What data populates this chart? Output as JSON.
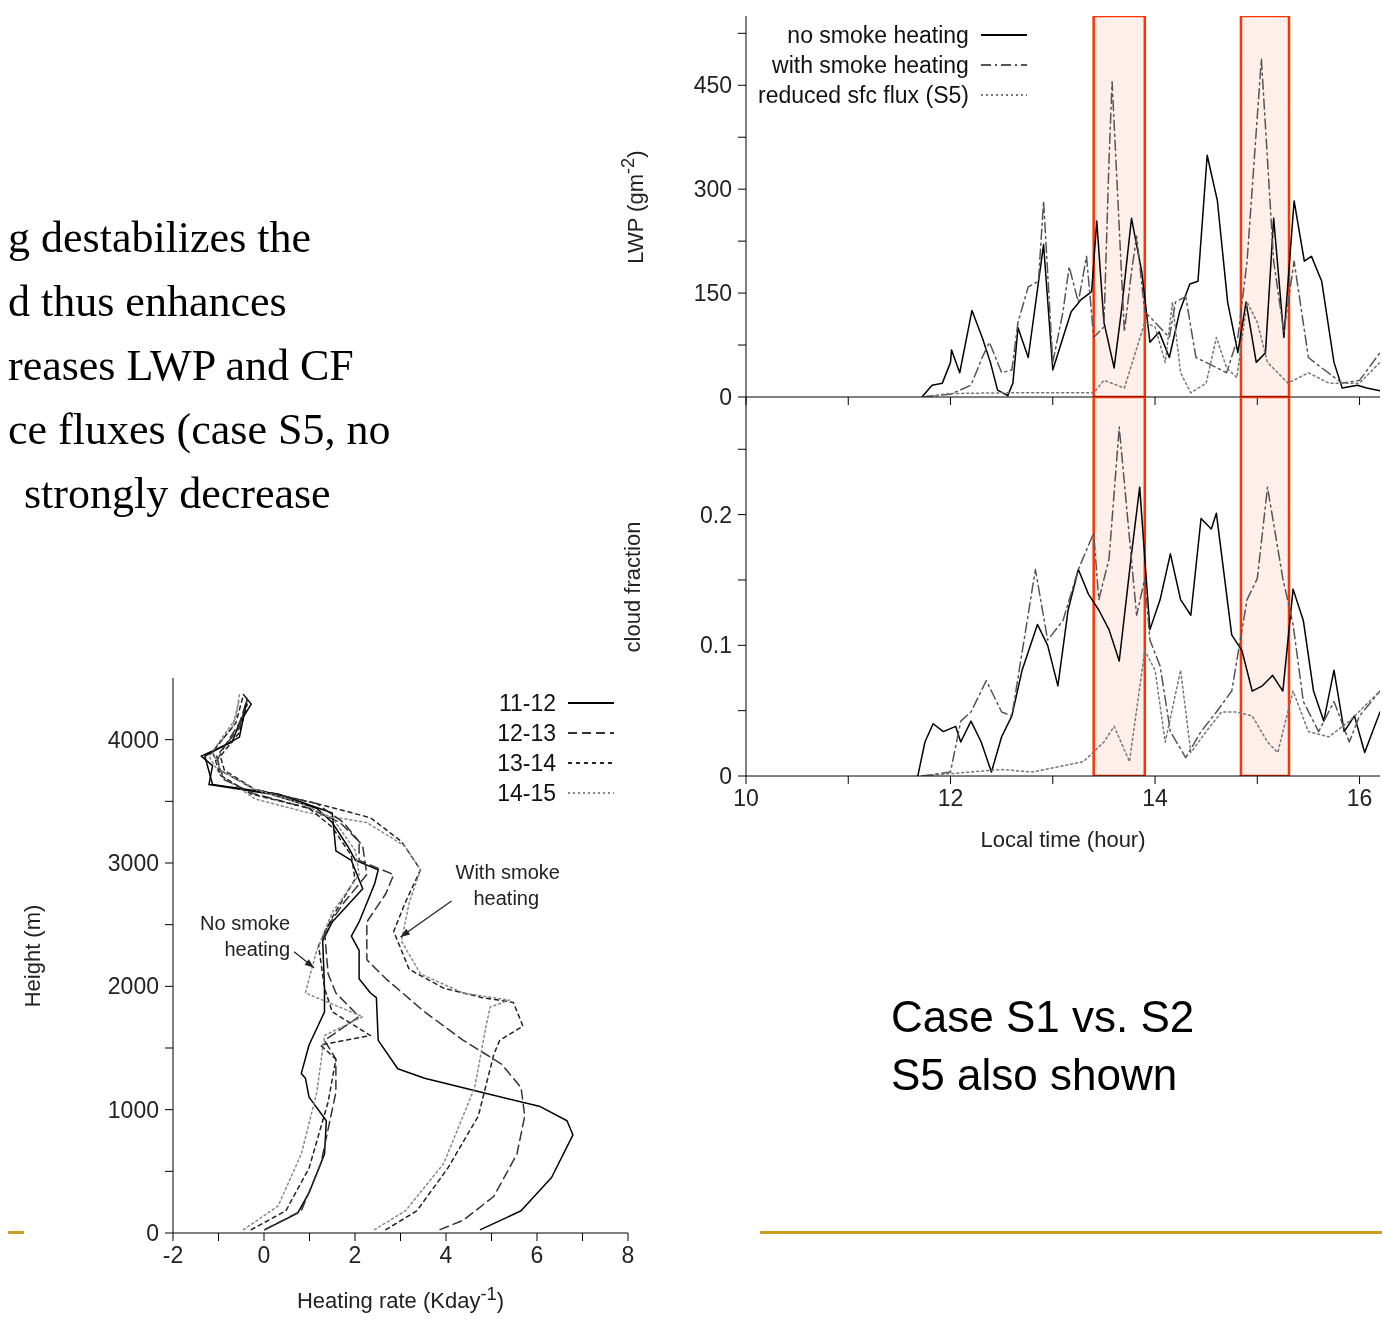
{
  "chart_data": [
    {
      "type": "other",
      "annotations": [
        "g destabilizes the",
        "d thus enhances",
        "reases LWP and CF",
        "ce fluxes (case S5, no",
        "strongly decrease"
      ]
    },
    {
      "type": "line",
      "ylabel": "LWP (gm$^{-2}$)",
      "xlim": [
        10,
        16.2
      ],
      "ylim": [
        0,
        550
      ],
      "xticks": [
        10,
        {
          "value": 11,
          "label": null
        },
        12,
        {
          "value": 13,
          "label": null
        },
        14,
        {
          "value": 15,
          "label": null
        },
        16
      ],
      "yticks": [
        0,
        {
          "value": 75,
          "label": null
        },
        150,
        {
          "value": 225,
          "label": null
        },
        300,
        {
          "value": 375,
          "label": null
        },
        450,
        {
          "value": 525,
          "label": null
        }
      ],
      "tick_labels": "y",
      "legend": "top left",
      "bands": [
        {
          "axis": "x",
          "from": 13.4,
          "to": 13.9,
          "color": "#ff3300"
        },
        {
          "axis": "x",
          "from": 14.84,
          "to": 15.31,
          "color": "#ff3300"
        }
      ],
      "series": [
        {
          "name": "no smoke heating",
          "color": "#000000",
          "line_style": "solid",
          "x": [
            11.72,
            11.82,
            11.92,
            12.0,
            12.01,
            12.09,
            12.21,
            12.31,
            12.39,
            12.46,
            12.56,
            12.61,
            12.66,
            12.76,
            12.91,
            13.0,
            13.1,
            13.18,
            13.28,
            13.38,
            13.43,
            13.5,
            13.6,
            13.67,
            13.77,
            13.87,
            13.95,
            14.04,
            14.14,
            14.24,
            14.34,
            14.42,
            14.51,
            14.61,
            14.71,
            14.81,
            14.89,
            14.99,
            15.08,
            15.16,
            15.26,
            15.36,
            15.46,
            15.53,
            15.63,
            15.75,
            15.83,
            15.98,
            16.07,
            16.2
          ],
          "values": [
            0,
            17,
            20,
            50,
            68,
            35,
            125,
            86,
            50,
            10,
            2,
            20,
            100,
            57,
            220,
            39,
            86,
            123,
            141,
            152,
            254,
            108,
            42,
            123,
            258,
            181,
            79,
            94,
            57,
            123,
            163,
            167,
            349,
            283,
            137,
            64,
            137,
            50,
            64,
            258,
            86,
            283,
            196,
            203,
            167,
            50,
            13,
            17,
            13,
            9
          ]
        },
        {
          "name": "with smoke heating",
          "color": "#555555",
          "line_style": "dashdot",
          "x": [
            11.72,
            12.0,
            12.2,
            12.31,
            12.38,
            12.5,
            12.6,
            12.66,
            12.76,
            12.86,
            12.91,
            13.0,
            13.1,
            13.16,
            13.25,
            13.33,
            13.4,
            13.5,
            13.55,
            13.58,
            13.63,
            13.7,
            13.77,
            13.82,
            13.9,
            14.0,
            14.14,
            14.2,
            14.3,
            14.4,
            14.5,
            14.7,
            14.81,
            14.9,
            14.97,
            15.04,
            15.1,
            15.16,
            15.26,
            15.36,
            15.5,
            15.63,
            15.83,
            16.0,
            16.2
          ],
          "values": [
            0,
            4,
            17,
            57,
            79,
            35,
            39,
            108,
            159,
            167,
            283,
            50,
            123,
            188,
            137,
            203,
            86,
            101,
            342,
            455,
            305,
            94,
            181,
            232,
            123,
            108,
            86,
            137,
            145,
            57,
            50,
            35,
            86,
            196,
            342,
            488,
            342,
            196,
            94,
            196,
            57,
            42,
            20,
            24,
            64
          ]
        },
        {
          "name": "reduced sfc flux (S5)",
          "color": "#777777",
          "line_style": "dotted",
          "x": [
            11.72,
            12.0,
            12.5,
            13.0,
            13.4,
            13.5,
            13.7,
            13.9,
            14.0,
            14.1,
            14.17,
            14.25,
            14.35,
            14.5,
            14.6,
            14.7,
            14.8,
            14.9,
            15.0,
            15.1,
            15.3,
            15.5,
            15.7,
            16.0,
            16.2
          ],
          "values": [
            0,
            5,
            6,
            6,
            6,
            24,
            13,
            108,
            101,
            50,
            137,
            35,
            6,
            20,
            86,
            42,
            28,
            137,
            108,
            50,
            20,
            35,
            20,
            20,
            50
          ]
        }
      ]
    },
    {
      "type": "line",
      "xlabel": "Local time (hour)",
      "ylabel": "cloud fraction",
      "xlim": [
        10,
        16.2
      ],
      "ylim": [
        0,
        0.29
      ],
      "xticks": [
        10,
        {
          "value": 11,
          "label": null
        },
        12,
        {
          "value": 13,
          "label": null
        },
        14,
        {
          "value": 15,
          "label": null
        },
        16
      ],
      "yticks": [
        0,
        {
          "value": 0.05,
          "label": null
        },
        0.1,
        {
          "value": 0.15,
          "label": null
        },
        0.2,
        {
          "value": 0.25,
          "label": null
        }
      ],
      "bands": [
        {
          "axis": "x",
          "from": 13.4,
          "to": 13.9,
          "color": "#ff3300"
        },
        {
          "axis": "x",
          "from": 14.84,
          "to": 15.31,
          "color": "#ff3300"
        }
      ],
      "series": [
        {
          "color": "#000000",
          "line_style": "solid",
          "x": [
            11.68,
            11.75,
            11.83,
            11.93,
            12.05,
            12.1,
            12.2,
            12.3,
            12.4,
            12.5,
            12.6,
            12.7,
            12.85,
            12.95,
            13.05,
            13.15,
            13.25,
            13.35,
            13.45,
            13.55,
            13.65,
            13.77,
            13.85,
            13.95,
            14.05,
            14.15,
            14.25,
            14.35,
            14.45,
            14.55,
            14.6,
            14.75,
            14.85,
            14.95,
            15.05,
            15.15,
            15.25,
            15.35,
            15.45,
            15.55,
            15.65,
            15.75,
            15.85,
            15.95,
            16.05,
            16.2
          ],
          "values": [
            0,
            0.026,
            0.04,
            0.034,
            0.038,
            0.026,
            0.042,
            0.026,
            0.003,
            0.03,
            0.046,
            0.081,
            0.116,
            0.1,
            0.069,
            0.127,
            0.158,
            0.139,
            0.127,
            0.112,
            0.088,
            0.17,
            0.221,
            0.112,
            0.135,
            0.17,
            0.135,
            0.123,
            0.197,
            0.189,
            0.201,
            0.108,
            0.096,
            0.065,
            0.069,
            0.077,
            0.065,
            0.143,
            0.119,
            0.065,
            0.042,
            0.081,
            0.034,
            0.046,
            0.018,
            0.049
          ]
        },
        {
          "color": "#555555",
          "line_style": "dashdot",
          "x": [
            11.72,
            12.0,
            12.1,
            12.2,
            12.35,
            12.5,
            12.6,
            12.75,
            12.83,
            12.95,
            13.1,
            13.25,
            13.4,
            13.45,
            13.55,
            13.65,
            13.75,
            13.82,
            13.9,
            13.95,
            14.05,
            14.15,
            14.3,
            14.45,
            14.6,
            14.75,
            14.9,
            15.0,
            15.1,
            15.25,
            15.35,
            15.45,
            15.6,
            15.75,
            15.9,
            16.0,
            16.2
          ],
          "values": [
            0,
            0.003,
            0.042,
            0.049,
            0.073,
            0.049,
            0.046,
            0.119,
            0.158,
            0.104,
            0.119,
            0.158,
            0.186,
            0.135,
            0.166,
            0.267,
            0.182,
            0.123,
            0.151,
            0.104,
            0.084,
            0.034,
            0.014,
            0.034,
            0.049,
            0.065,
            0.135,
            0.151,
            0.221,
            0.151,
            0.116,
            0.057,
            0.034,
            0.057,
            0.026,
            0.046,
            0.065
          ]
        },
        {
          "color": "#777777",
          "line_style": "dotted",
          "x": [
            11.72,
            12.5,
            12.8,
            13.3,
            13.5,
            13.6,
            13.75,
            13.9,
            14.0,
            14.1,
            14.25,
            14.35,
            14.5,
            14.65,
            14.8,
            14.95,
            15.1,
            15.2,
            15.35,
            15.5,
            15.7,
            15.9,
            16.2
          ],
          "values": [
            0,
            0.005,
            0.003,
            0.011,
            0.026,
            0.038,
            0.011,
            0.096,
            0.081,
            0.026,
            0.081,
            0.018,
            0.034,
            0.049,
            0.049,
            0.046,
            0.026,
            0.018,
            0.065,
            0.034,
            0.03,
            0.042,
            0.065
          ]
        }
      ]
    },
    {
      "type": "line",
      "xlabel": "Heating rate (Kday$^{-1}$)",
      "ylabel": "Height (m)",
      "xlim": [
        -2,
        8
      ],
      "ylim": [
        0,
        4500
      ],
      "xticks": [
        -2,
        {
          "value": -1,
          "label": null
        },
        0,
        {
          "value": 1,
          "label": null
        },
        2,
        {
          "value": 3,
          "label": null
        },
        4,
        {
          "value": 5,
          "label": null
        },
        6,
        {
          "value": 7,
          "label": null
        },
        8
      ],
      "yticks": [
        0,
        {
          "value": 500,
          "label": null
        },
        1000,
        {
          "value": 1500,
          "label": null
        },
        2000,
        {
          "value": 2500,
          "label": null
        },
        3000,
        {
          "value": 3500,
          "label": null
        },
        4000
      ],
      "legend": "top right",
      "annotations": [
        {
          "text": "No smoke\nheating",
          "x": 1.1,
          "y": 2150
        },
        {
          "text": "With smoke\nheating",
          "x": 3.0,
          "y": 2400
        }
      ],
      "series": [
        {
          "name": "11-12",
          "color": "#000000",
          "line_style": "solid",
          "x": [
            4.76,
            5.65,
            6.32,
            6.79,
            6.66,
            6.07,
            4.8,
            3.53,
            2.94,
            2.51,
            2.47,
            2.34,
            2.09,
            2.09,
            1.92,
            2.09,
            2.43,
            2.51,
            2.01,
            1.84,
            1.5,
            1.16,
            0.14,
            -1.21,
            -1.13,
            -1.38,
            -0.7,
            -0.54,
            -0.28,
            -0.45
          ],
          "values": [
            27,
            180,
            450,
            795,
            910,
            1025,
            1140,
            1255,
            1332,
            1562,
            1908,
            1946,
            2061,
            2292,
            2407,
            2522,
            2829,
            2945,
            3021,
            3136,
            3328,
            3444,
            3559,
            3636,
            3789,
            3866,
            3981,
            4135,
            4288,
            4365
          ]
        },
        {
          "name": "12-13",
          "color": "#333333",
          "line_style": "dashed",
          "x": [
            3.87,
            4.38,
            5.05,
            5.56,
            5.73,
            5.65,
            5.22,
            4.38,
            3.53,
            2.68,
            2.26,
            2.26,
            2.68,
            2.85,
            2.09,
            2.09,
            1.67,
            0.99,
            -0.2,
            -0.87,
            -1.04,
            -0.87,
            -0.54,
            -0.37
          ],
          "values": [
            27,
            104,
            296,
            641,
            948,
            1179,
            1370,
            1562,
            1793,
            2061,
            2215,
            2522,
            2753,
            2906,
            3021,
            3175,
            3328,
            3444,
            3559,
            3674,
            3827,
            3943,
            4135,
            4327
          ]
        },
        {
          "name": "13-14",
          "color": "#222222",
          "line_style": "shortdash",
          "x": [
            2.68,
            3.36,
            4.04,
            4.71,
            5.05,
            5.18,
            5.69,
            5.48,
            4.8,
            3.95,
            3.19,
            2.85,
            3.1,
            3.44,
            3.02,
            2.34,
            1.16,
            -0.2,
            -0.87,
            -0.96,
            -0.54,
            -0.37
          ],
          "values": [
            27,
            180,
            526,
            948,
            1447,
            1562,
            1677,
            1870,
            1908,
            1985,
            2138,
            2445,
            2676,
            2945,
            3175,
            3367,
            3482,
            3597,
            3751,
            3866,
            4058,
            4288
          ]
        },
        {
          "name": "14-15",
          "color": "#888888",
          "line_style": "dotted",
          "x": [
            2.43,
            3.11,
            3.95,
            4.63,
            4.88,
            4.97,
            5.39,
            4.38,
            3.44,
            3.02,
            3.19,
            3.44,
            3.1,
            2.26,
            0.99,
            -0.2,
            -0.96,
            -1.21,
            -0.7,
            -0.54
          ],
          "values": [
            27,
            180,
            564,
            1179,
            1677,
            1831,
            1889,
            1946,
            2100,
            2368,
            2676,
            2945,
            3136,
            3328,
            3405,
            3520,
            3712,
            3866,
            4097,
            4327
          ]
        },
        {
          "color": "#000000",
          "line_style": "solid",
          "x": [
            0.02,
            0.74,
            1.0,
            1.33,
            1.37,
            0.99,
            0.91,
            0.82,
            0.99,
            1.33,
            1.33,
            1.29,
            1.5,
            2.17,
            1.92,
            1.58,
            1.5,
            0.31,
            -1.13,
            -1.3,
            -0.54,
            -0.37
          ],
          "values": [
            27,
            161,
            334,
            641,
            910,
            1102,
            1255,
            1294,
            1524,
            1793,
            1985,
            2368,
            2522,
            2791,
            3021,
            3098,
            3405,
            3559,
            3636,
            3866,
            4020,
            4327
          ]
        },
        {
          "color": "#333333",
          "line_style": "dashed",
          "x": [
            0.02,
            0.82,
            1.25,
            1.58,
            1.58,
            1.33,
            2.09,
            1.58,
            1.41,
            1.33,
            1.75,
            2.26,
            2.17,
            1.75,
            1.16,
            -0.2,
            -0.96,
            -1.04,
            -0.54,
            -0.37
          ],
          "values": [
            27,
            180,
            564,
            1140,
            1409,
            1562,
            1754,
            1946,
            2100,
            2445,
            2676,
            2906,
            3136,
            3328,
            3482,
            3597,
            3751,
            3866,
            4097,
            4327
          ]
        },
        {
          "color": "#222222",
          "line_style": "shortdash",
          "x": [
            -0.28,
            0.48,
            0.99,
            1.41,
            1.58,
            1.24,
            2.34,
            1.5,
            1.33,
            1.2,
            1.5,
            2.0,
            1.92,
            1.5,
            0.99,
            -0.28,
            -0.96,
            -1.13,
            -0.62,
            -0.45
          ],
          "values": [
            27,
            180,
            526,
            1063,
            1409,
            1524,
            1601,
            1793,
            1985,
            2330,
            2560,
            2868,
            3060,
            3290,
            3444,
            3559,
            3712,
            3904,
            4135,
            4365
          ]
        },
        {
          "color": "#888888",
          "line_style": "dotted",
          "x": [
            -0.45,
            0.31,
            0.82,
            1.16,
            1.33,
            2.17,
            0.91,
            0.99,
            1.16,
            1.5,
            2.09,
            2.01,
            1.5,
            0.82,
            -0.2,
            -0.96,
            -1.13,
            -0.62,
            -0.54
          ],
          "values": [
            27,
            219,
            641,
            1140,
            1601,
            1754,
            1946,
            2061,
            2292,
            2599,
            2906,
            3098,
            3367,
            3482,
            3597,
            3751,
            3904,
            4173,
            4365
          ]
        }
      ]
    },
    {
      "type": "other",
      "annotations": [
        "Case S1 vs. S2",
        "S5 also shown"
      ]
    }
  ]
}
